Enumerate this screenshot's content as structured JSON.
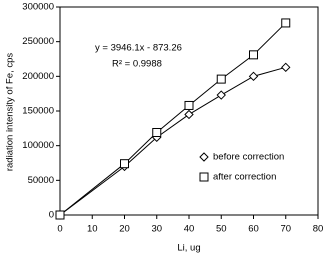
{
  "chart_data": {
    "type": "line",
    "x_label": "Li, ug",
    "y_label": "radiation intensity of Fe, cps",
    "annotations": [
      "y = 3946.1x - 873.26",
      "R² = 0.9988"
    ],
    "x": [
      0,
      20,
      30,
      40,
      50,
      60,
      70
    ],
    "series": [
      {
        "name": "before correction",
        "color": "#000000",
        "marker": "diamond",
        "values": [
          0,
          70000,
          112000,
          145000,
          173000,
          200000,
          213000
        ]
      },
      {
        "name": "after correction",
        "color": "#000000",
        "marker": "square",
        "values": [
          0,
          74000,
          119000,
          158000,
          196000,
          231000,
          277000
        ]
      }
    ],
    "xlim": [
      0,
      80
    ],
    "xticks": [
      0,
      10,
      20,
      30,
      40,
      50,
      60,
      70,
      80
    ],
    "ylim": [
      0,
      300000
    ],
    "yticks": [
      0,
      50000,
      100000,
      150000,
      200000,
      250000,
      300000
    ],
    "grid": false
  }
}
